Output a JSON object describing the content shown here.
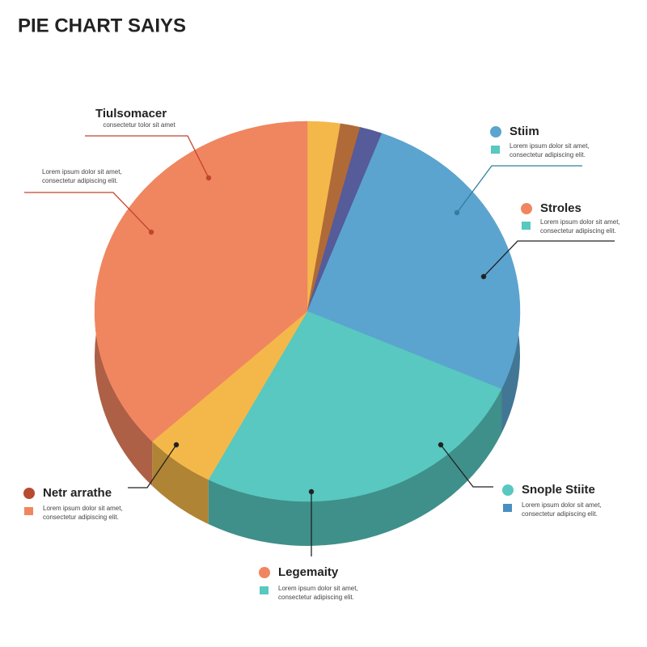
{
  "chart_data": {
    "type": "pie",
    "title": "PIE CHART SAIYS",
    "values": [
      2.5,
      1.5,
      1.7,
      26,
      26,
      5.3,
      37
    ],
    "colors": [
      "#f4b84a",
      "#b06a38",
      "#565b9a",
      "#5ba4cf",
      "#58c8c0",
      "#f4b84a",
      "#f08660"
    ],
    "annotations": [
      {
        "title": "Tiulsomacer",
        "text": [
          "consectetur tolor sit amet"
        ]
      },
      {
        "text": [
          "Lorem ipsum dolor sit amet,",
          "consectetur adipiscing elit."
        ]
      },
      {
        "title": "Stiim",
        "dot_color": "#5ba4cf",
        "square_color": "#58c8c0",
        "text": [
          "Lorem ipsum dolor sit amet,",
          "consectetur adipiscing elit."
        ]
      },
      {
        "title": "Stroles",
        "dot_color": "#f08660",
        "square_color": "#58c8c0",
        "text": [
          "Lorem ipsum dolor sit amet,",
          "consectetur adipiscing elit."
        ]
      },
      {
        "title": "Snople Stiite",
        "dot_color": "#58c8c0",
        "square_color": "#4a8fc2",
        "text": [
          "Lorem ipsum dolor sit amet,",
          "consectetur adipiscing elit."
        ]
      },
      {
        "title": "Legemaity",
        "dot_color": "#f08660",
        "square_color": "#58c8c0",
        "text": [
          "Lorem ipsum dolor sit amet,",
          "consectetur adipiscing elit."
        ]
      },
      {
        "title": "Netr arrathe",
        "dot_color": "#b84a30",
        "square_color": "#f08660",
        "text": [
          "Lorem ipsum dolor sit amet,",
          "consectetur adipiscing elit."
        ]
      }
    ]
  }
}
